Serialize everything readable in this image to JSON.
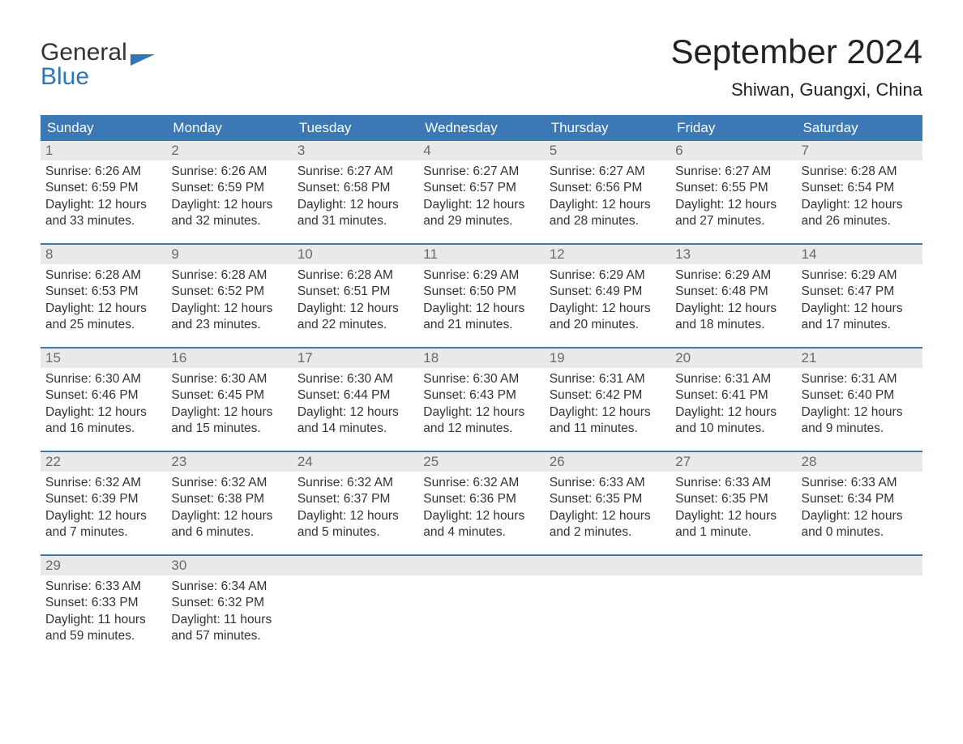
{
  "logo": {
    "line1": "General",
    "line2": "Blue"
  },
  "title": "September 2024",
  "location": "Shiwan, Guangxi, China",
  "colors": {
    "header_bg": "#3b78b5",
    "header_text": "#ffffff",
    "daynum_bg": "#e9e9e9",
    "daynum_text": "#6a6a6a",
    "body_text": "#333333",
    "logo_blue": "#2f76b8",
    "week_border": "#3b78b5",
    "background": "#ffffff"
  },
  "typography": {
    "title_fontsize": 42,
    "location_fontsize": 22,
    "weekday_fontsize": 17,
    "daynum_fontsize": 17,
    "body_fontsize": 15.5,
    "logo_fontsize": 30,
    "font_family": "Arial"
  },
  "layout": {
    "columns": 7,
    "rows": 5,
    "week_border_width": 2
  },
  "weekdays": [
    "Sunday",
    "Monday",
    "Tuesday",
    "Wednesday",
    "Thursday",
    "Friday",
    "Saturday"
  ],
  "weeks": [
    [
      {
        "n": "1",
        "sunrise": "Sunrise: 6:26 AM",
        "sunset": "Sunset: 6:59 PM",
        "dl1": "Daylight: 12 hours",
        "dl2": "and 33 minutes."
      },
      {
        "n": "2",
        "sunrise": "Sunrise: 6:26 AM",
        "sunset": "Sunset: 6:59 PM",
        "dl1": "Daylight: 12 hours",
        "dl2": "and 32 minutes."
      },
      {
        "n": "3",
        "sunrise": "Sunrise: 6:27 AM",
        "sunset": "Sunset: 6:58 PM",
        "dl1": "Daylight: 12 hours",
        "dl2": "and 31 minutes."
      },
      {
        "n": "4",
        "sunrise": "Sunrise: 6:27 AM",
        "sunset": "Sunset: 6:57 PM",
        "dl1": "Daylight: 12 hours",
        "dl2": "and 29 minutes."
      },
      {
        "n": "5",
        "sunrise": "Sunrise: 6:27 AM",
        "sunset": "Sunset: 6:56 PM",
        "dl1": "Daylight: 12 hours",
        "dl2": "and 28 minutes."
      },
      {
        "n": "6",
        "sunrise": "Sunrise: 6:27 AM",
        "sunset": "Sunset: 6:55 PM",
        "dl1": "Daylight: 12 hours",
        "dl2": "and 27 minutes."
      },
      {
        "n": "7",
        "sunrise": "Sunrise: 6:28 AM",
        "sunset": "Sunset: 6:54 PM",
        "dl1": "Daylight: 12 hours",
        "dl2": "and 26 minutes."
      }
    ],
    [
      {
        "n": "8",
        "sunrise": "Sunrise: 6:28 AM",
        "sunset": "Sunset: 6:53 PM",
        "dl1": "Daylight: 12 hours",
        "dl2": "and 25 minutes."
      },
      {
        "n": "9",
        "sunrise": "Sunrise: 6:28 AM",
        "sunset": "Sunset: 6:52 PM",
        "dl1": "Daylight: 12 hours",
        "dl2": "and 23 minutes."
      },
      {
        "n": "10",
        "sunrise": "Sunrise: 6:28 AM",
        "sunset": "Sunset: 6:51 PM",
        "dl1": "Daylight: 12 hours",
        "dl2": "and 22 minutes."
      },
      {
        "n": "11",
        "sunrise": "Sunrise: 6:29 AM",
        "sunset": "Sunset: 6:50 PM",
        "dl1": "Daylight: 12 hours",
        "dl2": "and 21 minutes."
      },
      {
        "n": "12",
        "sunrise": "Sunrise: 6:29 AM",
        "sunset": "Sunset: 6:49 PM",
        "dl1": "Daylight: 12 hours",
        "dl2": "and 20 minutes."
      },
      {
        "n": "13",
        "sunrise": "Sunrise: 6:29 AM",
        "sunset": "Sunset: 6:48 PM",
        "dl1": "Daylight: 12 hours",
        "dl2": "and 18 minutes."
      },
      {
        "n": "14",
        "sunrise": "Sunrise: 6:29 AM",
        "sunset": "Sunset: 6:47 PM",
        "dl1": "Daylight: 12 hours",
        "dl2": "and 17 minutes."
      }
    ],
    [
      {
        "n": "15",
        "sunrise": "Sunrise: 6:30 AM",
        "sunset": "Sunset: 6:46 PM",
        "dl1": "Daylight: 12 hours",
        "dl2": "and 16 minutes."
      },
      {
        "n": "16",
        "sunrise": "Sunrise: 6:30 AM",
        "sunset": "Sunset: 6:45 PM",
        "dl1": "Daylight: 12 hours",
        "dl2": "and 15 minutes."
      },
      {
        "n": "17",
        "sunrise": "Sunrise: 6:30 AM",
        "sunset": "Sunset: 6:44 PM",
        "dl1": "Daylight: 12 hours",
        "dl2": "and 14 minutes."
      },
      {
        "n": "18",
        "sunrise": "Sunrise: 6:30 AM",
        "sunset": "Sunset: 6:43 PM",
        "dl1": "Daylight: 12 hours",
        "dl2": "and 12 minutes."
      },
      {
        "n": "19",
        "sunrise": "Sunrise: 6:31 AM",
        "sunset": "Sunset: 6:42 PM",
        "dl1": "Daylight: 12 hours",
        "dl2": "and 11 minutes."
      },
      {
        "n": "20",
        "sunrise": "Sunrise: 6:31 AM",
        "sunset": "Sunset: 6:41 PM",
        "dl1": "Daylight: 12 hours",
        "dl2": "and 10 minutes."
      },
      {
        "n": "21",
        "sunrise": "Sunrise: 6:31 AM",
        "sunset": "Sunset: 6:40 PM",
        "dl1": "Daylight: 12 hours",
        "dl2": "and 9 minutes."
      }
    ],
    [
      {
        "n": "22",
        "sunrise": "Sunrise: 6:32 AM",
        "sunset": "Sunset: 6:39 PM",
        "dl1": "Daylight: 12 hours",
        "dl2": "and 7 minutes."
      },
      {
        "n": "23",
        "sunrise": "Sunrise: 6:32 AM",
        "sunset": "Sunset: 6:38 PM",
        "dl1": "Daylight: 12 hours",
        "dl2": "and 6 minutes."
      },
      {
        "n": "24",
        "sunrise": "Sunrise: 6:32 AM",
        "sunset": "Sunset: 6:37 PM",
        "dl1": "Daylight: 12 hours",
        "dl2": "and 5 minutes."
      },
      {
        "n": "25",
        "sunrise": "Sunrise: 6:32 AM",
        "sunset": "Sunset: 6:36 PM",
        "dl1": "Daylight: 12 hours",
        "dl2": "and 4 minutes."
      },
      {
        "n": "26",
        "sunrise": "Sunrise: 6:33 AM",
        "sunset": "Sunset: 6:35 PM",
        "dl1": "Daylight: 12 hours",
        "dl2": "and 2 minutes."
      },
      {
        "n": "27",
        "sunrise": "Sunrise: 6:33 AM",
        "sunset": "Sunset: 6:35 PM",
        "dl1": "Daylight: 12 hours",
        "dl2": "and 1 minute."
      },
      {
        "n": "28",
        "sunrise": "Sunrise: 6:33 AM",
        "sunset": "Sunset: 6:34 PM",
        "dl1": "Daylight: 12 hours",
        "dl2": "and 0 minutes."
      }
    ],
    [
      {
        "n": "29",
        "sunrise": "Sunrise: 6:33 AM",
        "sunset": "Sunset: 6:33 PM",
        "dl1": "Daylight: 11 hours",
        "dl2": "and 59 minutes."
      },
      {
        "n": "30",
        "sunrise": "Sunrise: 6:34 AM",
        "sunset": "Sunset: 6:32 PM",
        "dl1": "Daylight: 11 hours",
        "dl2": "and 57 minutes."
      },
      null,
      null,
      null,
      null,
      null
    ]
  ]
}
